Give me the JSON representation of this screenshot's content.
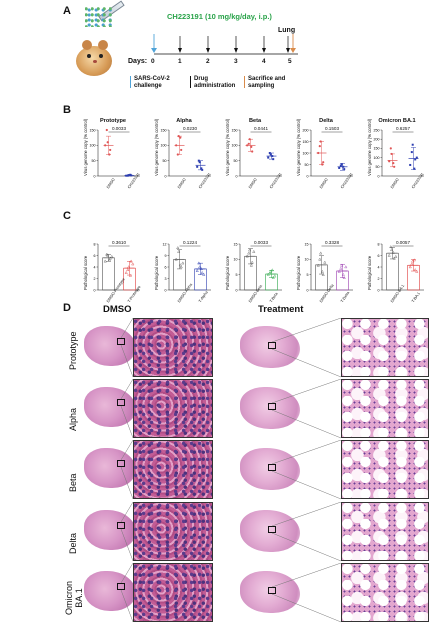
{
  "panel_a": {
    "letter": "A",
    "treatment_label": "CH223191 (10 mg/kg/day, i.p.)",
    "lung_label": "Lung",
    "days_label": "Days:",
    "days": [
      "0",
      "1",
      "2",
      "3",
      "4",
      "5"
    ],
    "legend": [
      {
        "text": "SARS-CoV-2\nchallenge",
        "color": "#4fa3d8"
      },
      {
        "text": "Drug\nadministration",
        "color": "#111111"
      },
      {
        "text": "Sacrifice and\nsampling",
        "color": "#d98b4a"
      }
    ]
  },
  "panel_b": {
    "letter": "B",
    "ylabel": "Virus genome copy (% control)",
    "charts": [
      {
        "title": "Prototype",
        "pvalue": "0.0033",
        "ylim": [
          0,
          150
        ],
        "yticks": [
          "0",
          "50",
          "100",
          "150"
        ],
        "xticks": [
          "DMSO",
          "CH223191"
        ],
        "groups": [
          {
            "color": "#e05656",
            "mean": 100,
            "sd": 30,
            "points": [
              100,
              110,
              85,
              160,
              70
            ]
          },
          {
            "color": "#2c3eb0",
            "mean": 2,
            "sd": 2,
            "points": [
              1,
              3,
              2,
              1,
              4
            ]
          }
        ]
      },
      {
        "title": "Alpha",
        "pvalue": "0.0230",
        "ylim": [
          0,
          150
        ],
        "yticks": [
          "0",
          "50",
          "100",
          "150"
        ],
        "xticks": [
          "DMSO",
          "CH223191"
        ],
        "groups": [
          {
            "color": "#e05656",
            "mean": 100,
            "sd": 30,
            "points": [
              100,
              130,
              85,
              70,
              125
            ]
          },
          {
            "color": "#2c3eb0",
            "mean": 35,
            "sd": 15,
            "points": [
              30,
              45,
              20,
              50,
              25
            ]
          }
        ]
      },
      {
        "title": "Beta",
        "pvalue": "0.0441",
        "ylim": [
          0,
          150
        ],
        "yticks": [
          "0",
          "50",
          "100",
          "150"
        ],
        "xticks": [
          "DMSO",
          "CH223191"
        ],
        "groups": [
          {
            "color": "#e05656",
            "mean": 100,
            "sd": 20,
            "points": [
              100,
              120,
              80,
              105,
              95
            ]
          },
          {
            "color": "#2c3eb0",
            "mean": 65,
            "sd": 10,
            "points": [
              60,
              70,
              55,
              75,
              65
            ]
          }
        ]
      },
      {
        "title": "Delta",
        "pvalue": "0.1503",
        "ylim": [
          0,
          200
        ],
        "yticks": [
          "0",
          "50",
          "100",
          "150",
          "200"
        ],
        "xticks": [
          "DMSO",
          "CH223191"
        ],
        "groups": [
          {
            "color": "#e05656",
            "mean": 100,
            "sd": 50,
            "points": [
              100,
              150,
              60,
              130,
              50
            ]
          },
          {
            "color": "#2c3eb0",
            "mean": 40,
            "sd": 15,
            "points": [
              35,
              50,
              30,
              45,
              40
            ]
          }
        ]
      },
      {
        "title": "Omicron BA.1",
        "pvalue": "0.6257",
        "ylim": [
          0,
          250
        ],
        "yticks": [
          "0",
          "50",
          "100",
          "150",
          "200",
          "250"
        ],
        "xticks": [
          "DMSO",
          "CH223191"
        ],
        "groups": [
          {
            "color": "#e05656",
            "mean": 85,
            "sd": 35,
            "points": [
              80,
              120,
              50,
              150,
              70
            ]
          },
          {
            "color": "#2c3eb0",
            "mean": 95,
            "sd": 60,
            "points": [
              60,
              170,
              90,
              130,
              40,
              100
            ]
          }
        ]
      }
    ]
  },
  "panel_c": {
    "letter": "C",
    "ylabel": "Pathological score",
    "charts": [
      {
        "pvalue": "0.3610",
        "ylim": [
          0,
          8
        ],
        "yticks": [
          "0",
          "2",
          "4",
          "6",
          "8"
        ],
        "xticks": [
          "DMSO-Prototype",
          "T-Prototype"
        ],
        "groups": [
          {
            "color": "#555555",
            "mean": 5.6,
            "sd": 0.6,
            "points": [
              5,
              6,
              5.5,
              6.2,
              5.2,
              5.8
            ]
          },
          {
            "color": "#e03c3c",
            "mean": 3.8,
            "sd": 1.2,
            "points": [
              3,
              4,
              5,
              3.5,
              2.5,
              4.5
            ]
          }
        ]
      },
      {
        "pvalue": "0.1224",
        "ylim": [
          0,
          12
        ],
        "yticks": [
          "0",
          "3",
          "6",
          "9",
          "12"
        ],
        "xticks": [
          "DMSO-Alpha",
          "T-Alpha"
        ],
        "groups": [
          {
            "color": "#555555",
            "mean": 8,
            "sd": 2.5,
            "points": [
              8,
              10,
              6,
              11,
              6.5,
              7
            ]
          },
          {
            "color": "#2c3eb0",
            "mean": 5.5,
            "sd": 1.5,
            "points": [
              5,
              6,
              4.5,
              7,
              5.5,
              4
            ]
          }
        ]
      },
      {
        "pvalue": "0.0033",
        "ylim": [
          0,
          15
        ],
        "yticks": [
          "0",
          "5",
          "10",
          "15"
        ],
        "xticks": [
          "DMSO-Beta",
          "T-Beta"
        ],
        "groups": [
          {
            "color": "#555555",
            "mean": 11,
            "sd": 2.5,
            "points": [
              11,
              13,
              9,
              12,
              8,
              12.5
            ]
          },
          {
            "color": "#2ea84a",
            "mean": 5.2,
            "sd": 1.2,
            "points": [
              5,
              6,
              4,
              5.5,
              6.5,
              4.5
            ]
          }
        ]
      },
      {
        "pvalue": "0.3328",
        "ylim": [
          0,
          15
        ],
        "yticks": [
          "0",
          "5",
          "10",
          "15"
        ],
        "xticks": [
          "DMSO-Delta",
          "T-Delta"
        ],
        "groups": [
          {
            "color": "#555555",
            "mean": 8.2,
            "sd": 3,
            "points": [
              8,
              12,
              5,
              10,
              6,
              9
            ]
          },
          {
            "color": "#9b3cb0",
            "mean": 6.2,
            "sd": 2.2,
            "points": [
              6,
              8,
              4,
              7,
              5,
              7.5
            ]
          }
        ]
      },
      {
        "pvalue": "0.0057",
        "ylim": [
          0,
          8
        ],
        "yticks": [
          "0",
          "2",
          "4",
          "6",
          "8"
        ],
        "xticks": [
          "DMSO-BA.1",
          "T-BA.1"
        ],
        "groups": [
          {
            "color": "#555555",
            "mean": 6.4,
            "sd": 1,
            "points": [
              6,
              7,
              5.5,
              7.5,
              6.5,
              5.8
            ]
          },
          {
            "color": "#e03c3c",
            "mean": 4.3,
            "sd": 1,
            "points": [
              4,
              5,
              3.5,
              4.5,
              5.2,
              3.2
            ]
          }
        ]
      }
    ]
  },
  "panel_d": {
    "letter": "D",
    "dmso_title": "DMSO",
    "treatment_title": "Treatment",
    "rows": [
      "Prototype",
      "Alpha",
      "Beta",
      "Delta",
      "Omicron\nBA.1"
    ]
  }
}
